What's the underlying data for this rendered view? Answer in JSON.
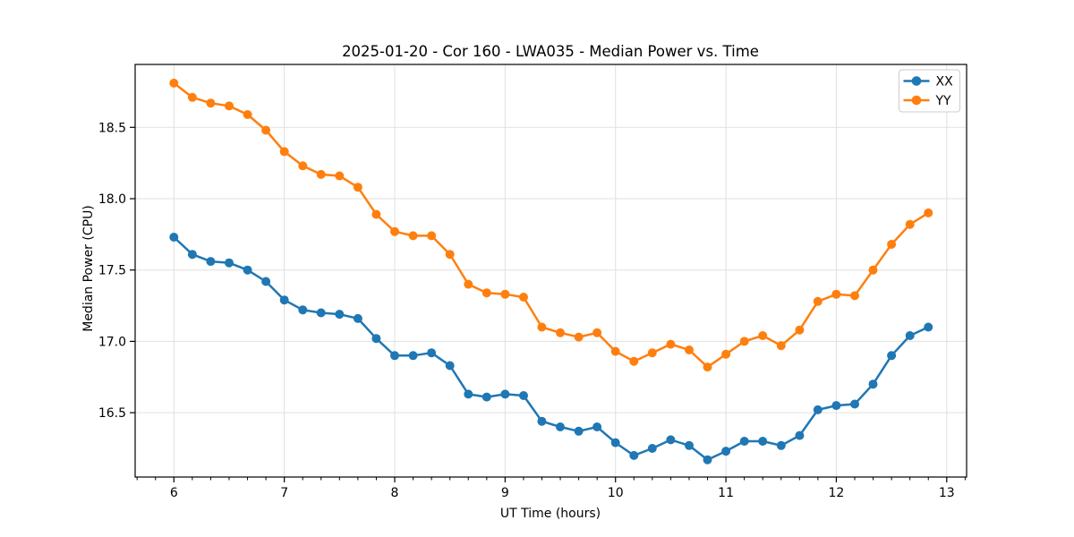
{
  "chart_data": {
    "type": "line",
    "title": "2025-01-20 - Cor 160 - LWA035 - Median Power vs. Time",
    "xlabel": "UT Time (hours)",
    "ylabel": "Median Power (CPU)",
    "xlim": [
      5.649,
      13.18
    ],
    "ylim": [
      16.049,
      18.941
    ],
    "xticks": [
      6,
      7,
      8,
      9,
      10,
      11,
      12,
      13
    ],
    "xtick_labels": [
      "6",
      "7",
      "8",
      "9",
      "10",
      "11",
      "12",
      "13"
    ],
    "yticks": [
      16.5,
      17.0,
      17.5,
      18.0,
      18.5
    ],
    "ytick_labels": [
      "16.5",
      "17.0",
      "17.5",
      "18.0",
      "18.5"
    ],
    "x_minor_step": 0.16667,
    "grid": true,
    "grid_color": "#e0e0e0",
    "legend_position": "upper right",
    "marker": "circle",
    "x": [
      6.0,
      6.167,
      6.333,
      6.5,
      6.667,
      6.833,
      7.0,
      7.167,
      7.333,
      7.5,
      7.667,
      7.833,
      8.0,
      8.167,
      8.333,
      8.5,
      8.667,
      8.833,
      9.0,
      9.167,
      9.333,
      9.5,
      9.667,
      9.833,
      10.0,
      10.167,
      10.333,
      10.5,
      10.667,
      10.833,
      11.0,
      11.167,
      11.333,
      11.5,
      11.667,
      11.833,
      12.0,
      12.167,
      12.333,
      12.5,
      12.667,
      12.833
    ],
    "series": [
      {
        "name": "XX",
        "color": "#1f77b4",
        "values": [
          17.73,
          17.61,
          17.56,
          17.55,
          17.5,
          17.42,
          17.29,
          17.22,
          17.2,
          17.19,
          17.16,
          17.02,
          16.9,
          16.9,
          16.92,
          16.83,
          16.63,
          16.61,
          16.63,
          16.62,
          16.44,
          16.4,
          16.37,
          16.4,
          16.29,
          16.2,
          16.25,
          16.31,
          16.27,
          16.17,
          16.23,
          16.3,
          16.3,
          16.27,
          16.34,
          16.52,
          16.55,
          16.56,
          16.7,
          16.9,
          17.04,
          17.1
        ]
      },
      {
        "name": "YY",
        "color": "#ff7f0e",
        "values": [
          18.81,
          18.71,
          18.67,
          18.65,
          18.59,
          18.48,
          18.33,
          18.23,
          18.17,
          18.16,
          18.08,
          17.89,
          17.77,
          17.74,
          17.74,
          17.61,
          17.4,
          17.34,
          17.33,
          17.31,
          17.1,
          17.06,
          17.03,
          17.06,
          16.93,
          16.86,
          16.92,
          16.98,
          16.94,
          16.82,
          16.91,
          17.0,
          17.04,
          16.97,
          17.08,
          17.28,
          17.33,
          17.32,
          17.5,
          17.68,
          17.82,
          17.9
        ]
      }
    ]
  }
}
